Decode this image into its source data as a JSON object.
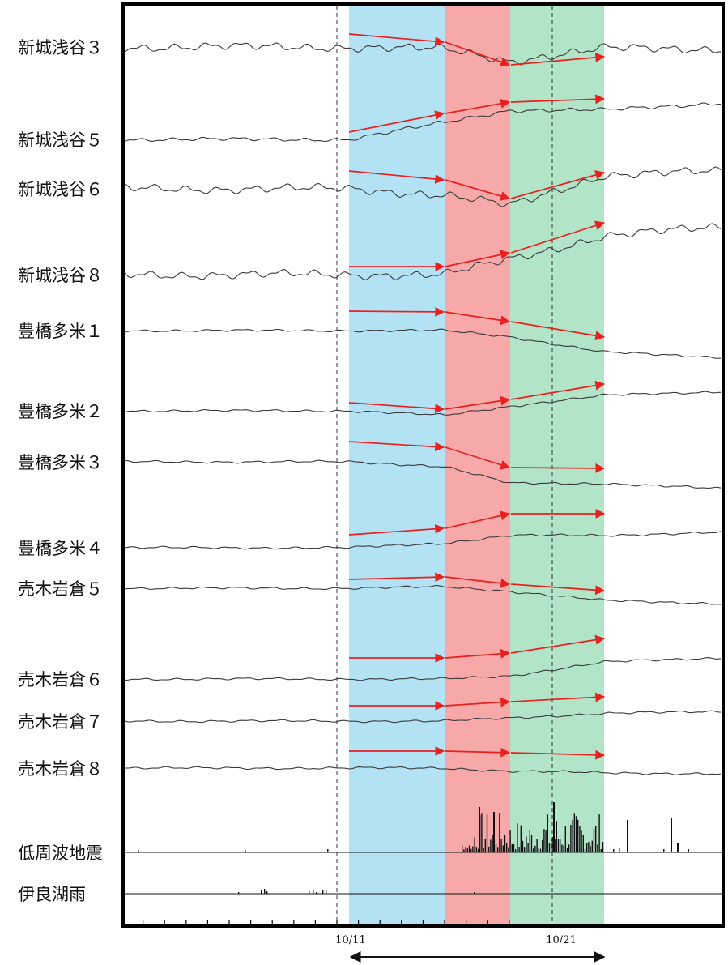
{
  "chart_data": {
    "type": "line",
    "x_axis": {
      "tick_labels": [
        "10/11",
        "10/21"
      ],
      "span_arrow": true
    },
    "bands": [
      {
        "name": "",
        "color": "#b3e2f5",
        "from_day": 0,
        "to_day": 4.5
      },
      {
        "name": "",
        "color": "#f7a9a9",
        "from_day": 4.5,
        "to_day": 7.6
      },
      {
        "name": "",
        "color": "#b2e4c8",
        "from_day": 7.6,
        "to_day": 12
      }
    ],
    "dashed_lines": [
      "10/10.4",
      "10/21"
    ],
    "series": [
      {
        "name": "新城浅谷３",
        "trend": [
          0.0,
          -0.15,
          -0.9,
          -0.1
        ],
        "noise": "high"
      },
      {
        "name": "新城浅谷５",
        "trend": [
          0.0,
          1.1,
          1.9,
          1.9
        ],
        "noise": "medium"
      },
      {
        "name": "新城浅谷６",
        "trend": [
          0.0,
          -0.4,
          -1.1,
          0.9
        ],
        "noise": "high"
      },
      {
        "name": "新城浅谷８",
        "trend": [
          0.0,
          0.0,
          1.0,
          2.5
        ],
        "noise": "high"
      },
      {
        "name": "豊橋多米１",
        "trend": [
          0.0,
          0.0,
          -0.4,
          -1.4
        ],
        "noise": "low"
      },
      {
        "name": "豊橋多米２",
        "trend": [
          0.0,
          -0.3,
          0.3,
          1.0
        ],
        "noise": "low"
      },
      {
        "name": "豊橋多米３",
        "trend": [
          0.0,
          -0.3,
          -1.4,
          -1.4
        ],
        "noise": "low"
      },
      {
        "name": "豊橋多米４",
        "trend": [
          0.0,
          0.3,
          0.8,
          0.8
        ],
        "noise": "low"
      },
      {
        "name": "売木岩倉５",
        "trend": [
          0.0,
          0.1,
          -0.2,
          -0.8
        ],
        "noise": "low"
      },
      {
        "name": "売木岩倉６",
        "trend": [
          0.0,
          0.0,
          0.2,
          1.1
        ],
        "noise": "low"
      },
      {
        "name": "売木岩倉７",
        "trend": [
          0.0,
          0.0,
          0.2,
          0.5
        ],
        "noise": "low"
      },
      {
        "name": "売木岩倉８",
        "trend": [
          0.0,
          0.0,
          -0.2,
          -0.3
        ],
        "noise": "low"
      }
    ],
    "bars": [
      {
        "name": "低周波地震",
        "type": "bar"
      },
      {
        "name": "伊良湖雨",
        "type": "bar"
      }
    ],
    "arrow_color": "#e8201e",
    "trace_color": "#3a3a3a"
  }
}
